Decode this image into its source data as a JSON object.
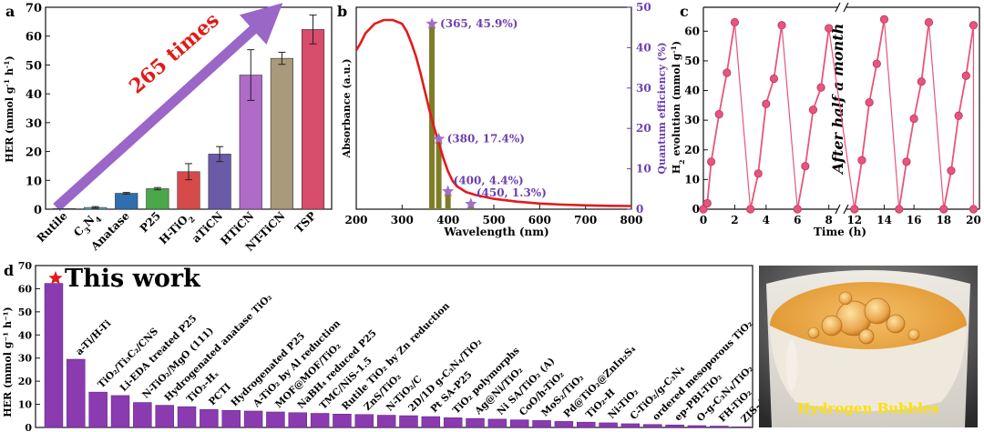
{
  "panels": {
    "a": {
      "panel_label": "a",
      "annotation": "265 times",
      "colors": {
        "arrow": "#9a66c8",
        "annotation_text": "#e01b1b"
      },
      "chart_data": {
        "type": "bar",
        "ylabel_parts": [
          "HER (mmol g",
          "-1",
          " h",
          "-1",
          ")"
        ],
        "ylim": [
          0,
          70
        ],
        "yticks": [
          0,
          10,
          20,
          30,
          40,
          50,
          60,
          70
        ],
        "categories": [
          {
            "parts": [
              {
                "t": "Rutile"
              }
            ]
          },
          {
            "parts": [
              {
                "t": "C"
              },
              {
                "t": "3",
                "s": "sub"
              },
              {
                "t": "N"
              },
              {
                "t": "4",
                "s": "sub"
              }
            ]
          },
          {
            "parts": [
              {
                "t": "Anatase"
              }
            ]
          },
          {
            "parts": [
              {
                "t": "P25"
              }
            ]
          },
          {
            "parts": [
              {
                "t": "H-TiO"
              },
              {
                "t": "2",
                "s": "sub"
              }
            ]
          },
          {
            "parts": [
              {
                "t": "aTiCN"
              }
            ]
          },
          {
            "parts": [
              {
                "t": "HTiCN"
              }
            ]
          },
          {
            "parts": [
              {
                "t": "NT-TiCN"
              }
            ]
          },
          {
            "parts": [
              {
                "t": "TSP"
              }
            ]
          }
        ],
        "values": [
          0.2,
          0.6,
          5.5,
          7.1,
          13.0,
          19.1,
          46.5,
          52.3,
          62.3
        ],
        "errors": [
          0.1,
          0.3,
          0.3,
          0.4,
          2.8,
          2.6,
          8.8,
          2.1,
          5.0
        ],
        "colors": [
          "#4a8fb5",
          "#5db3e0",
          "#2f6fb0",
          "#4aa84a",
          "#d64a4a",
          "#6a5aa8",
          "#b06ac8",
          "#a89a7a",
          "#d84c6c"
        ]
      }
    },
    "b": {
      "panel_label": "b",
      "colors": {
        "curve": "#e31a1c",
        "bars": "#7e7d27",
        "stars": "#a06fc6",
        "annot": "#6c3fb0",
        "right_axis": "#6c3fb0"
      },
      "chart_data": {
        "type": "line+bar",
        "xlabel": "Wavelength (nm)",
        "ylabel_left": "Absorbance (a.u.)",
        "ylabel_right": "Quantum efficiency (%)",
        "xlim": [
          200,
          800
        ],
        "xticks": [
          200,
          300,
          400,
          500,
          600,
          700,
          800
        ],
        "ylim_right": [
          0,
          50
        ],
        "yticks_right": [
          0,
          10,
          20,
          30,
          40,
          50
        ],
        "absorbance": {
          "x": [
            200,
            210,
            220,
            240,
            260,
            280,
            300,
            310,
            320,
            330,
            340,
            350,
            360,
            370,
            380,
            390,
            400,
            410,
            420,
            440,
            460,
            480,
            500,
            550,
            600,
            650,
            700,
            750,
            800
          ],
          "y": [
            0.84,
            0.88,
            0.93,
            0.98,
            1.0,
            1.0,
            0.98,
            0.94,
            0.88,
            0.81,
            0.72,
            0.62,
            0.52,
            0.43,
            0.35,
            0.27,
            0.2,
            0.15,
            0.12,
            0.09,
            0.075,
            0.065,
            0.055,
            0.04,
            0.03,
            0.024,
            0.02,
            0.018,
            0.017
          ]
        },
        "qe_points": [
          {
            "x": 365,
            "y": 45.9,
            "label": "(365, 45.9%)"
          },
          {
            "x": 380,
            "y": 17.4,
            "label": "(380, 17.4%)"
          },
          {
            "x": 400,
            "y": 4.4,
            "label": "(400, 4.4%)"
          },
          {
            "x": 450,
            "y": 1.3,
            "label": "(450, 1.3%)"
          }
        ]
      }
    },
    "c": {
      "panel_label": "c",
      "annotation": "After half a month",
      "colors": {
        "series": "#e7557c"
      },
      "chart_data": {
        "type": "line",
        "xlabel": "Time (h)",
        "ylabel_parts": [
          "H",
          "2",
          " evolution (mmol g",
          "-1",
          ")"
        ],
        "ylim": [
          0,
          65
        ],
        "yticks": [
          0,
          10,
          20,
          30,
          40,
          50,
          60
        ],
        "xticks_left": [
          0,
          2,
          4,
          6,
          8
        ],
        "xticks_right": [
          12,
          14,
          16,
          18,
          20
        ],
        "xlim_left": [
          0,
          8.6
        ],
        "xlim_right": [
          11.4,
          20.4
        ],
        "cycles": [
          {
            "x": [
              0,
              0.25,
              0.5,
              1.0,
              1.5,
              2.0
            ],
            "y": [
              0,
              2,
              16,
              32,
              46,
              63
            ]
          },
          {
            "x": [
              3.0,
              3.5,
              4.0,
              4.5,
              5.0
            ],
            "y": [
              0,
              12,
              35.5,
              44,
              62
            ]
          },
          {
            "x": [
              6.0,
              6.5,
              7.0,
              7.5,
              8.0
            ],
            "y": [
              0,
              14.5,
              33.5,
              41,
              61
            ]
          },
          {
            "x": [
              12.0,
              12.5,
              13.0,
              13.5,
              14.0
            ],
            "y": [
              0,
              16.5,
              36,
              49,
              64
            ]
          },
          {
            "x": [
              15.0,
              15.5,
              16.0,
              16.5,
              17.0
            ],
            "y": [
              0,
              16,
              30.5,
              43,
              63
            ]
          },
          {
            "x": [
              18.0,
              18.5,
              19.0,
              19.5,
              20.0
            ],
            "y": [
              0,
              13,
              31.5,
              45,
              62
            ]
          },
          {
            "x": [
              20.0
            ],
            "y": [
              0
            ]
          }
        ]
      }
    },
    "d": {
      "panel_label": "d",
      "highlight_label": "This work",
      "colors": {
        "bar": "#8a3bb0",
        "star": "#e01b1b"
      },
      "chart_data": {
        "type": "bar",
        "ylabel": "HER (mmol g⁻¹ h⁻¹)",
        "ylim": [
          0,
          70
        ],
        "yticks": [
          0,
          10,
          20,
          30,
          40,
          50,
          60,
          70
        ],
        "categories": [
          "This work",
          "a-Ti/H-Ti",
          "TiO₂/Ti₃C₂/CNS",
          "Li-EDA treated P25",
          "N-TiO₂/MgO (111)",
          "Hydrogenated anatase TiO₂",
          "TiO₂-Hₓ",
          "PCTI",
          "Hydrogenated P25",
          "A-TiO₂ by Al reduction",
          "MOF@MOF/TiO₂",
          "NaBH₄ reduced P25",
          "TMC/NiS-1.5",
          "Rutile TiO₂ by Zn reduction",
          "ZnS/TiO₂",
          "N-TiO₂/C",
          "2D/1D g-C₃N₄/TiO₂",
          "Pt SA-P25",
          "TiO₂ polymorphs",
          "Ag@Ni/TiO₂",
          "Ni SA/TiO₂ (A)",
          "CoO/h-TiO₂",
          "MoS₂/TiO₂",
          "Pd@TiO₂@ZnIn₂S₄",
          "TiO₂-H",
          "Ni-TiO₂",
          "C-TiO₂/g-C₃N₄",
          "ordered mesoporous TiO₂",
          "ep-PBI-TiO₂",
          "O-g-C₃N₄/TiO₂",
          "FH-TiO₂",
          "ZIS-Au-TO"
        ],
        "values": [
          62.3,
          29.5,
          15.3,
          13.8,
          10.8,
          9.6,
          9.0,
          7.8,
          7.4,
          7.1,
          6.7,
          6.4,
          6.1,
          5.8,
          5.6,
          5.3,
          5.1,
          4.7,
          4.2,
          3.9,
          3.6,
          3.3,
          3.0,
          2.6,
          2.3,
          2.0,
          1.6,
          1.3,
          1.1,
          0.8,
          0.6,
          0.3
        ]
      }
    },
    "e": {
      "panel_label": "e",
      "caption": "Hydrogen Bubbles",
      "colors": {
        "caption": "#ffe000",
        "liquid": "#e7a23a"
      }
    }
  }
}
